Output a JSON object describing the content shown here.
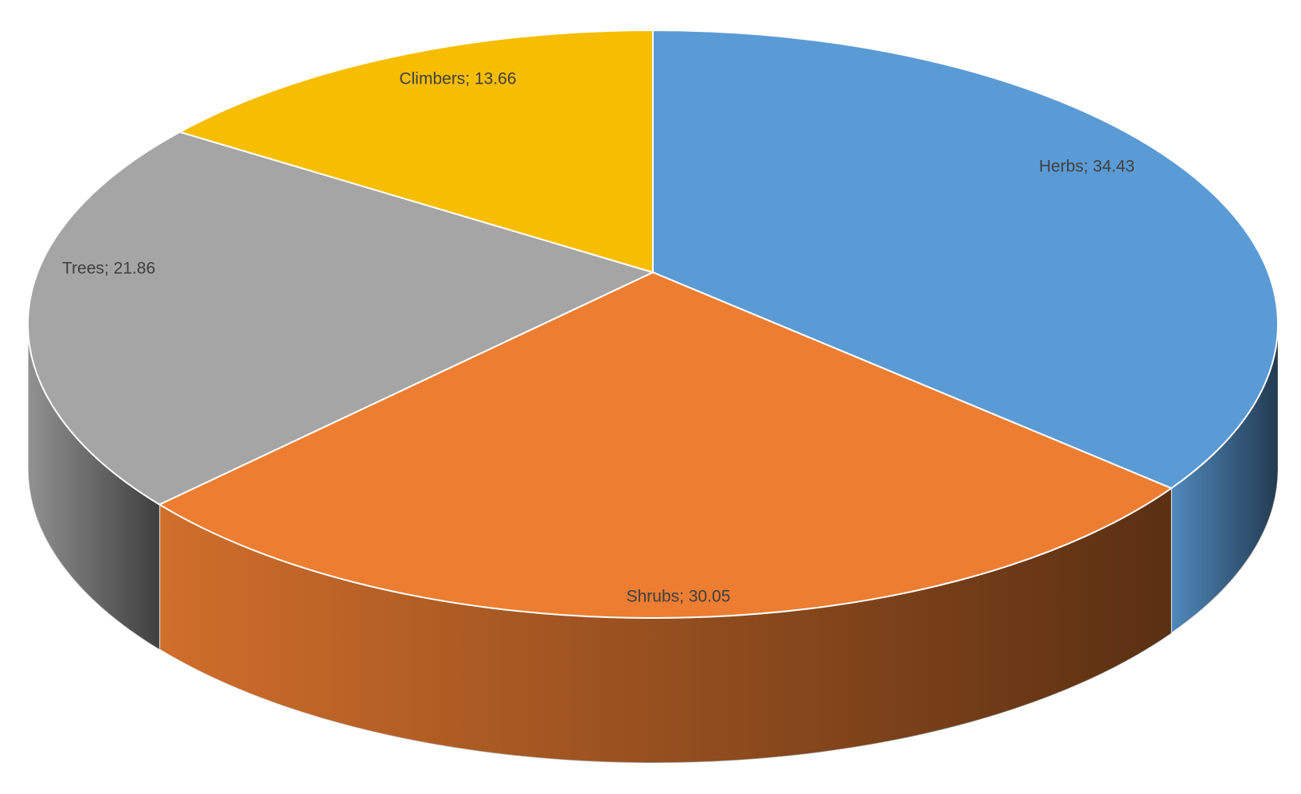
{
  "chart_data": {
    "type": "pie",
    "categories": [
      "Herbs",
      "Shrubs",
      "Trees",
      "Climbers"
    ],
    "values": [
      34.43,
      30.05,
      21.86,
      13.66
    ],
    "value_labels": [
      "Herbs; 34.43",
      "Shrubs; 30.05",
      "Trees; 21.86",
      "Climbers; 13.66"
    ],
    "colors": [
      "#5b9bd5",
      "#ed7d31",
      "#a5a5a5",
      "#f7bd00"
    ]
  }
}
